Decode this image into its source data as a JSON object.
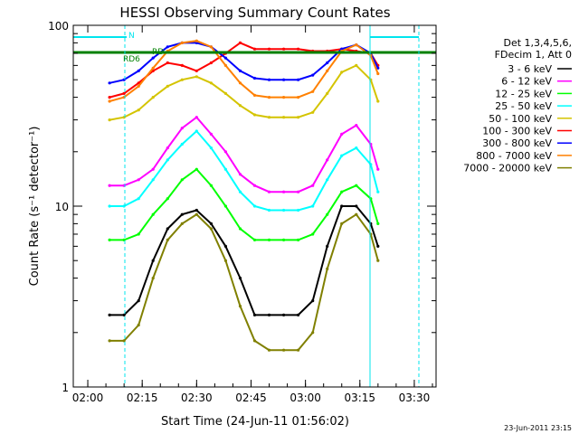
{
  "chart_data": {
    "type": "line",
    "title": "HESSI Observing Summary Count Rates",
    "xlabel": "Start Time (24-Jun-11 01:56:02)",
    "ylabel": "Count Rate (s⁻¹ detector⁻¹)",
    "yscale": "log",
    "ylim": [
      1,
      100
    ],
    "xlim": [
      "01:56",
      "03:36"
    ],
    "x_ticks": [
      "02:00",
      "02:15",
      "02:30",
      "02:45",
      "03:00",
      "03:15",
      "03:30"
    ],
    "y_ticks": [
      "1",
      "10",
      "100"
    ],
    "grid": false,
    "legend_position": "right",
    "legend_header": [
      "Det 1,3,4,5,6,",
      "FDecim 1, Att 0"
    ],
    "footer_timestamp": "23-Jun-2011 23:15",
    "annotations": [
      {
        "text": "N",
        "color": "#00e5ee"
      },
      {
        "text": "RD6",
        "color": "#008000"
      },
      {
        "text": "RD",
        "color": "#008000"
      }
    ],
    "series": [
      {
        "name": "3 - 6 keV",
        "color": "#000000",
        "x": [
          "02:06",
          "02:10",
          "02:14",
          "02:18",
          "02:22",
          "02:26",
          "02:30",
          "02:34",
          "02:38",
          "02:42",
          "02:46",
          "02:50",
          "02:54",
          "02:58",
          "03:02",
          "03:06",
          "03:10",
          "03:14",
          "03:18",
          "03:20"
        ],
        "y": [
          2.5,
          2.5,
          3,
          5,
          7.5,
          9,
          9.5,
          8,
          6,
          4,
          2.5,
          2.5,
          2.5,
          2.5,
          3,
          6,
          10,
          10,
          8,
          6
        ]
      },
      {
        "name": "6 - 12 keV",
        "color": "#ff00ff",
        "x": [
          "02:06",
          "02:10",
          "02:14",
          "02:18",
          "02:22",
          "02:26",
          "02:30",
          "02:34",
          "02:38",
          "02:42",
          "02:46",
          "02:50",
          "02:54",
          "02:58",
          "03:02",
          "03:06",
          "03:10",
          "03:14",
          "03:18",
          "03:20"
        ],
        "y": [
          13,
          13,
          14,
          16,
          21,
          27,
          31,
          25,
          20,
          15,
          13,
          12,
          12,
          12,
          13,
          18,
          25,
          28,
          22,
          16
        ]
      },
      {
        "name": "12 - 25 keV",
        "color": "#00ff00",
        "x": [
          "02:06",
          "02:10",
          "02:14",
          "02:18",
          "02:22",
          "02:26",
          "02:30",
          "02:34",
          "02:38",
          "02:42",
          "02:46",
          "02:50",
          "02:54",
          "02:58",
          "03:02",
          "03:06",
          "03:10",
          "03:14",
          "03:18",
          "03:20"
        ],
        "y": [
          6.5,
          6.5,
          7,
          9,
          11,
          14,
          16,
          13,
          10,
          7.5,
          6.5,
          6.5,
          6.5,
          6.5,
          7,
          9,
          12,
          13,
          11,
          8
        ]
      },
      {
        "name": "25 - 50 keV",
        "color": "#00ffff",
        "x": [
          "02:06",
          "02:10",
          "02:14",
          "02:18",
          "02:22",
          "02:26",
          "02:30",
          "02:34",
          "02:38",
          "02:42",
          "02:46",
          "02:50",
          "02:54",
          "02:58",
          "03:02",
          "03:06",
          "03:10",
          "03:14",
          "03:18",
          "03:20"
        ],
        "y": [
          10,
          10,
          11,
          14,
          18,
          22,
          26,
          21,
          16,
          12,
          10,
          9.5,
          9.5,
          9.5,
          10,
          14,
          19,
          21,
          17,
          12
        ]
      },
      {
        "name": "50 - 100 keV",
        "color": "#d4c400",
        "x": [
          "02:06",
          "02:10",
          "02:14",
          "02:18",
          "02:22",
          "02:26",
          "02:30",
          "02:34",
          "02:38",
          "02:42",
          "02:46",
          "02:50",
          "02:54",
          "02:58",
          "03:02",
          "03:06",
          "03:10",
          "03:14",
          "03:18",
          "03:20"
        ],
        "y": [
          30,
          31,
          34,
          40,
          46,
          50,
          52,
          48,
          42,
          36,
          32,
          31,
          31,
          31,
          33,
          42,
          55,
          60,
          50,
          38
        ]
      },
      {
        "name": "100 - 300 keV",
        "color": "#ff0000",
        "x": [
          "02:06",
          "02:10",
          "02:14",
          "02:18",
          "02:22",
          "02:26",
          "02:30",
          "02:34",
          "02:38",
          "02:42",
          "02:46",
          "02:50",
          "02:54",
          "02:58",
          "03:02",
          "03:06",
          "03:10",
          "03:14",
          "03:18",
          "03:20"
        ],
        "y": [
          40,
          42,
          48,
          56,
          62,
          60,
          56,
          62,
          70,
          80,
          74,
          74,
          74,
          74,
          72,
          72,
          74,
          72,
          70,
          60
        ]
      },
      {
        "name": "300 - 800 keV",
        "color": "#0000ff",
        "x": [
          "02:06",
          "02:10",
          "02:14",
          "02:18",
          "02:22",
          "02:26",
          "02:30",
          "02:34",
          "02:38",
          "02:42",
          "02:46",
          "02:50",
          "02:54",
          "02:58",
          "03:02",
          "03:06",
          "03:10",
          "03:14",
          "03:18",
          "03:20"
        ],
        "y": [
          48,
          50,
          56,
          66,
          76,
          80,
          80,
          76,
          66,
          56,
          51,
          50,
          50,
          50,
          53,
          62,
          74,
          78,
          70,
          58
        ]
      },
      {
        "name": "800 - 7000 keV",
        "color": "#ff8000",
        "x": [
          "02:06",
          "02:10",
          "02:14",
          "02:18",
          "02:22",
          "02:26",
          "02:30",
          "02:34",
          "02:38",
          "02:42",
          "02:46",
          "02:50",
          "02:54",
          "02:58",
          "03:02",
          "03:06",
          "03:10",
          "03:14",
          "03:18",
          "03:20"
        ],
        "y": [
          38,
          40,
          46,
          58,
          72,
          80,
          82,
          76,
          60,
          48,
          41,
          40,
          40,
          40,
          43,
          56,
          72,
          78,
          68,
          54
        ]
      },
      {
        "name": "7000 - 20000 keV",
        "color": "#808000",
        "x": [
          "02:06",
          "02:10",
          "02:14",
          "02:18",
          "02:22",
          "02:26",
          "02:30",
          "02:34",
          "02:38",
          "02:42",
          "02:46",
          "02:50",
          "02:54",
          "02:58",
          "03:02",
          "03:06",
          "03:10",
          "03:14",
          "03:18",
          "03:20"
        ],
        "y": [
          1.8,
          1.8,
          2.2,
          4,
          6.5,
          8,
          9,
          7.5,
          5,
          2.8,
          1.8,
          1.6,
          1.6,
          1.6,
          2,
          4.5,
          8,
          9,
          7,
          5
        ]
      }
    ]
  }
}
